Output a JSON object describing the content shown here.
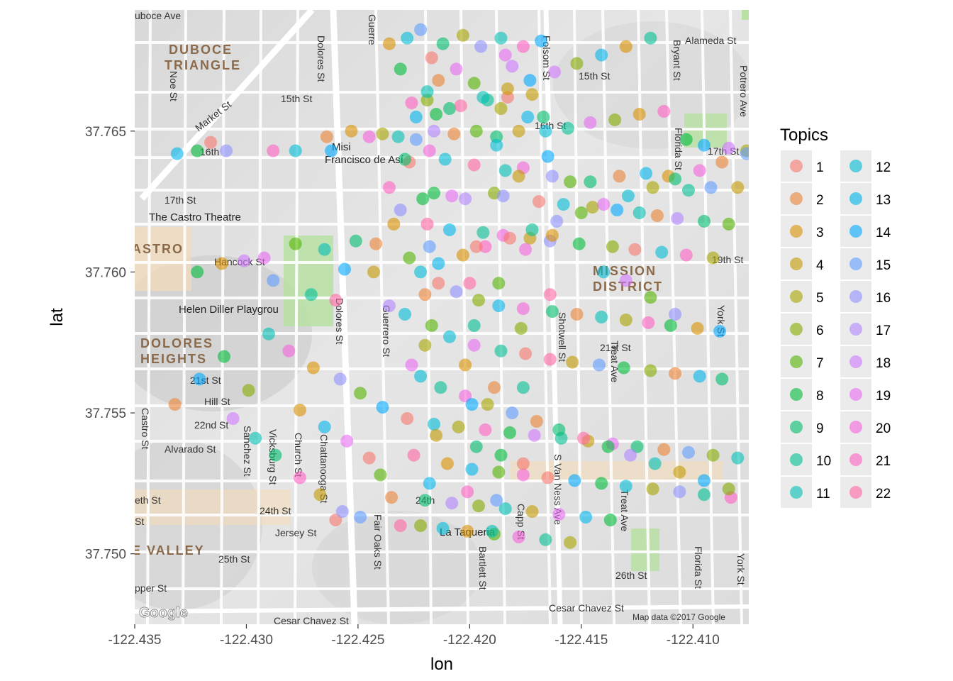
{
  "chart_data": {
    "type": "scatter",
    "xlabel": "lon",
    "ylabel": "lat",
    "xlim": [
      -122.435,
      -122.4075
    ],
    "ylim": [
      37.7475,
      37.7693
    ],
    "x_ticks": [
      -122.435,
      -122.43,
      -122.425,
      -122.42,
      -122.415,
      -122.41
    ],
    "x_tick_labels": [
      "-122.435",
      "-122.430",
      "-122.425",
      "-122.420",
      "-122.415",
      "-122.410"
    ],
    "y_ticks": [
      37.75,
      37.755,
      37.76,
      37.765
    ],
    "y_tick_labels": [
      "37.750",
      "37.755",
      "37.760",
      "37.765"
    ],
    "legend": {
      "title": "Topics",
      "placement": "right",
      "columns": 2,
      "entries": [
        "1",
        "2",
        "3",
        "4",
        "5",
        "6",
        "7",
        "8",
        "9",
        "10",
        "11",
        "12",
        "13",
        "14",
        "15",
        "16",
        "17",
        "18",
        "19",
        "20",
        "21",
        "22"
      ]
    },
    "point_alpha": 0.6,
    "series_colors": [
      "#F8766D",
      "#EB8335",
      "#DA8F00",
      "#C49A00",
      "#A9A400",
      "#86AC00",
      "#53B400",
      "#00BA38",
      "#00BE6C",
      "#00C094",
      "#00BFB6",
      "#00BCD5",
      "#00B5EE",
      "#00A9FF",
      "#619CFF",
      "#8F91FF",
      "#B385FF",
      "#D078FF",
      "#E76BF3",
      "#F763DF",
      "#FF61C6",
      "#FF67A4"
    ],
    "points": [
      [
        -122.4236,
        37.7681,
        3
      ],
      [
        -122.4228,
        37.7683,
        12
      ],
      [
        -122.4222,
        37.7686,
        15
      ],
      [
        -122.4212,
        37.7681,
        9
      ],
      [
        -122.4203,
        37.7684,
        5
      ],
      [
        -122.4195,
        37.768,
        16
      ],
      [
        -122.4186,
        37.7683,
        11
      ],
      [
        -122.4176,
        37.768,
        21
      ],
      [
        -122.4168,
        37.7682,
        14
      ],
      [
        -122.4181,
        37.7673,
        18
      ],
      [
        -122.4231,
        37.7672,
        8
      ],
      [
        -122.4214,
        37.7668,
        2
      ],
      [
        -122.4206,
        37.7672,
        19
      ],
      [
        -122.4198,
        37.7667,
        7
      ],
      [
        -122.4192,
        37.7661,
        10
      ],
      [
        -122.4183,
        37.7662,
        1
      ],
      [
        -122.4172,
        37.7663,
        4
      ],
      [
        -122.4219,
        37.7661,
        6
      ],
      [
        -122.4224,
        37.7655,
        13
      ],
      [
        -122.4209,
        37.7658,
        9
      ],
      [
        -122.4239,
        37.7649,
        5
      ],
      [
        -122.4245,
        37.7648,
        20
      ],
      [
        -122.4253,
        37.765,
        3
      ],
      [
        -122.4264,
        37.7648,
        2
      ],
      [
        -122.4262,
        37.7643,
        14
      ],
      [
        -122.4278,
        37.7643,
        12
      ],
      [
        -122.4288,
        37.7643,
        21
      ],
      [
        -122.4309,
        37.7643,
        16
      ],
      [
        -122.4316,
        37.7646,
        1
      ],
      [
        -122.4322,
        37.7643,
        8
      ],
      [
        -122.4331,
        37.7642,
        13
      ],
      [
        -122.4232,
        37.7648,
        11
      ],
      [
        -122.4224,
        37.7647,
        15
      ],
      [
        -122.4216,
        37.765,
        17
      ],
      [
        -122.4207,
        37.7649,
        2
      ],
      [
        -122.4197,
        37.765,
        7
      ],
      [
        -122.4188,
        37.7648,
        9
      ],
      [
        -122.4178,
        37.765,
        4
      ],
      [
        -122.4166,
        37.765,
        12
      ],
      [
        -122.4156,
        37.7651,
        10
      ],
      [
        -122.4146,
        37.7653,
        19
      ],
      [
        -122.4135,
        37.7654,
        6
      ],
      [
        -122.4124,
        37.7656,
        3
      ],
      [
        -122.4113,
        37.7657,
        21
      ],
      [
        -122.4103,
        37.7647,
        8
      ],
      [
        -122.4095,
        37.7645,
        14
      ],
      [
        -122.4084,
        37.7644,
        18
      ],
      [
        -122.4076,
        37.7643,
        5
      ],
      [
        -122.4227,
        37.7639,
        1
      ],
      [
        -122.4211,
        37.764,
        12
      ],
      [
        -122.4198,
        37.7638,
        22
      ],
      [
        -122.4184,
        37.7636,
        11
      ],
      [
        -122.4176,
        37.7637,
        20
      ],
      [
        -122.4163,
        37.7634,
        16
      ],
      [
        -122.4155,
        37.7632,
        7
      ],
      [
        -122.4146,
        37.7632,
        9
      ],
      [
        -122.4133,
        37.7634,
        2
      ],
      [
        -122.4121,
        37.7635,
        13
      ],
      [
        -122.4111,
        37.7634,
        3
      ],
      [
        -122.4102,
        37.7629,
        10
      ],
      [
        -122.4092,
        37.763,
        15
      ],
      [
        -122.408,
        37.763,
        4
      ],
      [
        -122.4236,
        37.763,
        21
      ],
      [
        -122.4216,
        37.7628,
        8
      ],
      [
        -122.4208,
        37.7627,
        19
      ],
      [
        -122.4189,
        37.7628,
        6
      ],
      [
        -122.4169,
        37.7625,
        1
      ],
      [
        -122.4158,
        37.7624,
        12
      ],
      [
        -122.4145,
        37.7623,
        5
      ],
      [
        -122.4134,
        37.7622,
        14
      ],
      [
        -122.4124,
        37.7621,
        11
      ],
      [
        -122.4116,
        37.762,
        2
      ],
      [
        -122.4107,
        37.7619,
        17
      ],
      [
        -122.4095,
        37.7618,
        9
      ],
      [
        -122.4084,
        37.7617,
        7
      ],
      [
        -122.4234,
        37.7617,
        3
      ],
      [
        -122.4219,
        37.7617,
        22
      ],
      [
        -122.4209,
        37.7615,
        13
      ],
      [
        -122.4194,
        37.7614,
        10
      ],
      [
        -122.4185,
        37.7613,
        20
      ],
      [
        -122.4173,
        37.7612,
        4
      ],
      [
        -122.4164,
        37.7611,
        16
      ],
      [
        -122.4151,
        37.761,
        8
      ],
      [
        -122.4136,
        37.7609,
        6
      ],
      [
        -122.4126,
        37.7608,
        1
      ],
      [
        -122.4114,
        37.7607,
        12
      ],
      [
        -122.4103,
        37.7606,
        21
      ],
      [
        -122.4091,
        37.7605,
        5
      ],
      [
        -122.4251,
        37.7611,
        9
      ],
      [
        -122.4242,
        37.761,
        2
      ],
      [
        -122.4256,
        37.7601,
        14
      ],
      [
        -122.4265,
        37.7608,
        11
      ],
      [
        -122.4278,
        37.761,
        7
      ],
      [
        -122.4292,
        37.7605,
        19
      ],
      [
        -122.4301,
        37.7604,
        18
      ],
      [
        -122.4311,
        37.7603,
        3
      ],
      [
        -122.4322,
        37.76,
        8
      ],
      [
        -122.4288,
        37.7597,
        15
      ],
      [
        -122.4271,
        37.7592,
        10
      ],
      [
        -122.426,
        37.759,
        22
      ],
      [
        -122.4243,
        37.76,
        4
      ],
      [
        -122.4222,
        37.76,
        12
      ],
      [
        -122.4214,
        37.7596,
        1
      ],
      [
        -122.4206,
        37.7593,
        16
      ],
      [
        -122.4196,
        37.759,
        6
      ],
      [
        -122.4187,
        37.7588,
        13
      ],
      [
        -122.4176,
        37.7587,
        20
      ],
      [
        -122.4163,
        37.7586,
        9
      ],
      [
        -122.4152,
        37.7585,
        2
      ],
      [
        -122.4141,
        37.7584,
        11
      ],
      [
        -122.413,
        37.7583,
        5
      ],
      [
        -122.412,
        37.7582,
        21
      ],
      [
        -122.411,
        37.7581,
        8
      ],
      [
        -122.4098,
        37.758,
        3
      ],
      [
        -122.4088,
        37.7579,
        14
      ],
      [
        -122.4236,
        37.7588,
        17
      ],
      [
        -122.4217,
        37.7581,
        7
      ],
      [
        -122.4209,
        37.7577,
        12
      ],
      [
        -122.4198,
        37.7574,
        19
      ],
      [
        -122.4186,
        37.7572,
        10
      ],
      [
        -122.4175,
        37.7571,
        1
      ],
      [
        -122.4164,
        37.7569,
        22
      ],
      [
        -122.4154,
        37.7568,
        4
      ],
      [
        -122.4142,
        37.7567,
        15
      ],
      [
        -122.4131,
        37.7566,
        8
      ],
      [
        -122.4119,
        37.7565,
        6
      ],
      [
        -122.4108,
        37.7564,
        2
      ],
      [
        -122.4097,
        37.7563,
        13
      ],
      [
        -122.4087,
        37.7562,
        9
      ],
      [
        -122.429,
        37.7578,
        11
      ],
      [
        -122.4281,
        37.7572,
        20
      ],
      [
        -122.427,
        37.7566,
        3
      ],
      [
        -122.4258,
        37.7562,
        16
      ],
      [
        -122.4249,
        37.7557,
        7
      ],
      [
        -122.4239,
        37.7552,
        14
      ],
      [
        -122.4228,
        37.7548,
        1
      ],
      [
        -122.4216,
        37.7546,
        12
      ],
      [
        -122.4205,
        37.7545,
        5
      ],
      [
        -122.4193,
        37.7544,
        21
      ],
      [
        -122.4182,
        37.7543,
        8
      ],
      [
        -122.4171,
        37.7542,
        18
      ],
      [
        -122.4159,
        37.7541,
        10
      ],
      [
        -122.4147,
        37.754,
        4
      ],
      [
        -122.4136,
        37.7539,
        19
      ],
      [
        -122.4125,
        37.7538,
        9
      ],
      [
        -122.4113,
        37.7537,
        2
      ],
      [
        -122.4102,
        37.7536,
        15
      ],
      [
        -122.4091,
        37.7535,
        6
      ],
      [
        -122.408,
        37.7534,
        11
      ],
      [
        -122.4225,
        37.7535,
        22
      ],
      [
        -122.421,
        37.7532,
        3
      ],
      [
        -122.4199,
        37.753,
        13
      ],
      [
        -122.4187,
        37.7529,
        7
      ],
      [
        -122.4176,
        37.7528,
        20
      ],
      [
        -122.4165,
        37.7527,
        1
      ],
      [
        -122.4153,
        37.7526,
        14
      ],
      [
        -122.4141,
        37.7525,
        8
      ],
      [
        -122.413,
        37.7524,
        12
      ],
      [
        -122.4118,
        37.7523,
        5
      ],
      [
        -122.4106,
        37.7522,
        16
      ],
      [
        -122.4095,
        37.7521,
        10
      ],
      [
        -122.4083,
        37.752,
        21
      ],
      [
        -122.4235,
        37.752,
        2
      ],
      [
        -122.422,
        37.7519,
        9
      ],
      [
        -122.4208,
        37.7518,
        17
      ],
      [
        -122.4196,
        37.7517,
        6
      ],
      [
        -122.4184,
        37.7516,
        11
      ],
      [
        -122.4172,
        37.7515,
        4
      ],
      [
        -122.416,
        37.7514,
        19
      ],
      [
        -122.4148,
        37.7513,
        13
      ],
      [
        -122.4137,
        37.7512,
        8
      ],
      [
        -122.4249,
        37.7513,
        15
      ],
      [
        -122.426,
        37.7512,
        1
      ],
      [
        -122.4231,
        37.751,
        22
      ],
      [
        -122.4212,
        37.7509,
        12
      ],
      [
        -122.4201,
        37.7508,
        3
      ],
      [
        -122.4189,
        37.7507,
        7
      ],
      [
        -122.4178,
        37.7506,
        20
      ],
      [
        -122.4166,
        37.7505,
        10
      ],
      [
        -122.4155,
        37.7504,
        5
      ],
      [
        -122.431,
        37.757,
        8
      ],
      [
        -122.4321,
        37.7562,
        14
      ],
      [
        -122.4332,
        37.7553,
        2
      ],
      [
        -122.4306,
        37.7548,
        18
      ],
      [
        -122.4296,
        37.7541,
        11
      ],
      [
        -122.4287,
        37.7535,
        9
      ],
      [
        -122.4276,
        37.7527,
        21
      ],
      [
        -122.4267,
        37.7521,
        4
      ],
      [
        -122.4257,
        37.7515,
        16
      ],
      [
        -122.4299,
        37.7558,
        6
      ],
      [
        -122.4276,
        37.7551,
        3
      ],
      [
        -122.4265,
        37.7545,
        13
      ],
      [
        -122.4255,
        37.754,
        19
      ],
      [
        -122.4245,
        37.7534,
        1
      ],
      [
        -122.424,
        37.7528,
        7
      ],
      [
        -122.4222,
        37.7563,
        12
      ],
      [
        -122.4213,
        37.7559,
        10
      ],
      [
        -122.4202,
        37.7556,
        20
      ],
      [
        -122.4192,
        37.7553,
        5
      ],
      [
        -122.4181,
        37.755,
        15
      ],
      [
        -122.417,
        37.7547,
        2
      ],
      [
        -122.416,
        37.7544,
        9
      ],
      [
        -122.4149,
        37.7541,
        22
      ],
      [
        -122.4138,
        37.7538,
        8
      ],
      [
        -122.4128,
        37.7535,
        17
      ],
      [
        -122.4117,
        37.7532,
        11
      ],
      [
        -122.4106,
        37.7529,
        4
      ],
      [
        -122.4095,
        37.7526,
        14
      ],
      [
        -122.4084,
        37.7523,
        6
      ],
      [
        -122.4214,
        37.7603,
        13
      ],
      [
        -122.4203,
        37.7606,
        3
      ],
      [
        -122.4193,
        37.7609,
        21
      ],
      [
        -122.4182,
        37.7612,
        1
      ],
      [
        -122.4172,
        37.7615,
        10
      ],
      [
        -122.4161,
        37.7618,
        16
      ],
      [
        -122.415,
        37.7621,
        7
      ],
      [
        -122.414,
        37.7624,
        19
      ],
      [
        -122.4129,
        37.7627,
        12
      ],
      [
        -122.4118,
        37.763,
        5
      ],
      [
        -122.4108,
        37.7633,
        9
      ],
      [
        -122.4097,
        37.7636,
        20
      ],
      [
        -122.4087,
        37.7639,
        2
      ],
      [
        -122.4076,
        37.7642,
        15
      ],
      [
        -122.4215,
        37.7656,
        8
      ],
      [
        -122.4204,
        37.7659,
        22
      ],
      [
        -122.4194,
        37.7662,
        11
      ],
      [
        -122.4183,
        37.7665,
        4
      ],
      [
        -122.4173,
        37.7668,
        14
      ],
      [
        -122.4162,
        37.7671,
        18
      ],
      [
        -122.4152,
        37.7674,
        6
      ],
      [
        -122.4141,
        37.7677,
        13
      ],
      [
        -122.413,
        37.768,
        3
      ],
      [
        -122.4119,
        37.7683,
        10
      ],
      [
        -122.4217,
        37.7676,
        1
      ],
      [
        -122.4226,
        37.766,
        21
      ],
      [
        -122.4229,
        37.764,
        9
      ],
      [
        -122.4231,
        37.7622,
        16
      ],
      [
        -122.4227,
        37.7605,
        7
      ],
      [
        -122.4229,
        37.7585,
        12
      ],
      [
        -122.4226,
        37.7567,
        19
      ],
      [
        -122.422,
        37.7574,
        5
      ],
      [
        -122.422,
        37.7592,
        2
      ],
      [
        -122.4218,
        37.7609,
        15
      ],
      [
        -122.4221,
        37.7626,
        8
      ],
      [
        -122.4218,
        37.7643,
        20
      ],
      [
        -122.4219,
        37.7664,
        11
      ],
      [
        -122.4215,
        37.7542,
        4
      ],
      [
        -122.4218,
        37.7525,
        13
      ],
      [
        -122.4222,
        37.751,
        6
      ],
      [
        -122.4202,
        37.7626,
        17
      ],
      [
        -122.4197,
        37.7609,
        1
      ],
      [
        -122.42,
        37.7596,
        22
      ],
      [
        -122.4198,
        37.7581,
        10
      ],
      [
        -122.4202,
        37.7567,
        3
      ],
      [
        -122.4199,
        37.7553,
        14
      ],
      [
        -122.4197,
        37.7538,
        9
      ],
      [
        -122.4201,
        37.7522,
        21
      ],
      [
        -122.4187,
        37.7596,
        7
      ],
      [
        -122.4185,
        37.7627,
        16
      ],
      [
        -122.4188,
        37.7645,
        12
      ],
      [
        -122.4186,
        37.7658,
        5
      ],
      [
        -122.4184,
        37.7677,
        19
      ],
      [
        -122.4189,
        37.7559,
        2
      ],
      [
        -122.4186,
        37.7535,
        8
      ],
      [
        -122.4188,
        37.7519,
        15
      ],
      [
        -122.419,
        37.7508,
        11
      ],
      [
        -122.4175,
        37.7608,
        20
      ],
      [
        -122.4178,
        37.7634,
        4
      ],
      [
        -122.4174,
        37.7655,
        13
      ],
      [
        -122.4177,
        37.758,
        6
      ],
      [
        -122.4176,
        37.7559,
        10
      ],
      [
        -122.4176,
        37.7532,
        1
      ],
      [
        -122.4164,
        37.7592,
        22
      ],
      [
        -122.4163,
        37.7613,
        3
      ],
      [
        -122.4165,
        37.7641,
        14
      ],
      [
        -122.4167,
        37.7655,
        9
      ],
      [
        -122.414,
        37.76,
        12
      ],
      [
        -122.413,
        37.7597,
        18
      ],
      [
        -122.4119,
        37.7591,
        7
      ],
      [
        -122.4108,
        37.7585,
        16
      ]
    ]
  }
}
